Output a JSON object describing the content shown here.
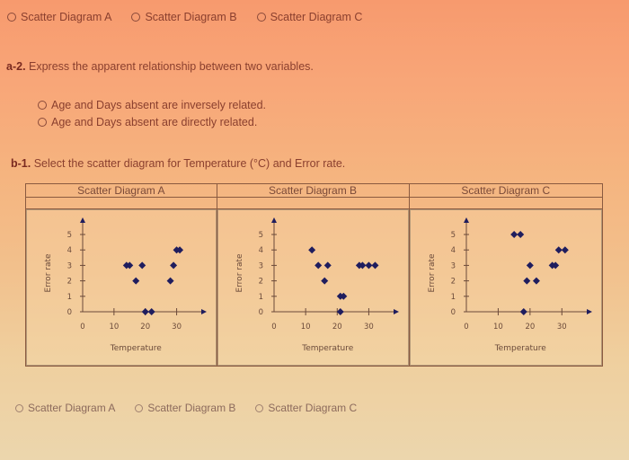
{
  "top_options": {
    "items": [
      {
        "label": "Scatter Diagram A"
      },
      {
        "label": "Scatter Diagram B"
      },
      {
        "label": "Scatter Diagram C"
      }
    ]
  },
  "question_a2": {
    "number": "a-2.",
    "text": " Express the apparent relationship between two variables.",
    "options": [
      {
        "label": "Age and Days absent are inversely related."
      },
      {
        "label": "Age and Days absent are directly related."
      }
    ]
  },
  "question_b1": {
    "number": "b-1.",
    "text": " Select the scatter diagram for Temperature (°C) and Error rate."
  },
  "table": {
    "headers": [
      "Scatter Diagram A",
      "Scatter Diagram B",
      "Scatter Diagram C"
    ]
  },
  "bottom_options": {
    "items": [
      {
        "label": "Scatter Diagram A"
      },
      {
        "label": "Scatter Diagram B"
      },
      {
        "label": "Scatter Diagram C"
      }
    ]
  },
  "colors": {
    "marker": "#1f1d5e",
    "axis": "#6b4a3a",
    "text": "#8a3f2e"
  },
  "chart_data": [
    {
      "type": "scatter",
      "title": "Scatter Diagram A",
      "xlabel": "Temperature",
      "ylabel": "Error rate",
      "xlim": [
        0,
        35
      ],
      "ylim": [
        0,
        5
      ],
      "xticks": [
        0,
        10,
        20,
        30
      ],
      "yticks": [
        0,
        1,
        2,
        3,
        4,
        5
      ],
      "grid": false,
      "points": [
        [
          14,
          3
        ],
        [
          15,
          3
        ],
        [
          17,
          2
        ],
        [
          19,
          3
        ],
        [
          20,
          0
        ],
        [
          22,
          0
        ],
        [
          28,
          2
        ],
        [
          29,
          3
        ],
        [
          30,
          4
        ],
        [
          31,
          4
        ]
      ]
    },
    {
      "type": "scatter",
      "title": "Scatter Diagram B",
      "xlabel": "Temperature",
      "ylabel": "Error rate",
      "xlim": [
        0,
        35
      ],
      "ylim": [
        0,
        5
      ],
      "xticks": [
        0,
        10,
        20,
        30
      ],
      "yticks": [
        0,
        1,
        2,
        3,
        4,
        5
      ],
      "grid": false,
      "points": [
        [
          12,
          4
        ],
        [
          14,
          3
        ],
        [
          17,
          3
        ],
        [
          16,
          2
        ],
        [
          21,
          1
        ],
        [
          22,
          1
        ],
        [
          21,
          0
        ],
        [
          27,
          3
        ],
        [
          28,
          3
        ],
        [
          30,
          3
        ],
        [
          32,
          3
        ]
      ]
    },
    {
      "type": "scatter",
      "title": "Scatter Diagram C",
      "xlabel": "Temperature",
      "ylabel": "Error rate",
      "xlim": [
        0,
        35
      ],
      "ylim": [
        0,
        5
      ],
      "xticks": [
        0,
        10,
        20,
        30
      ],
      "yticks": [
        0,
        1,
        2,
        3,
        4,
        5
      ],
      "grid": false,
      "points": [
        [
          15,
          5
        ],
        [
          17,
          5
        ],
        [
          20,
          3
        ],
        [
          19,
          2
        ],
        [
          22,
          2
        ],
        [
          27,
          3
        ],
        [
          28,
          3
        ],
        [
          29,
          4
        ],
        [
          31,
          4
        ],
        [
          18,
          0
        ]
      ]
    }
  ]
}
